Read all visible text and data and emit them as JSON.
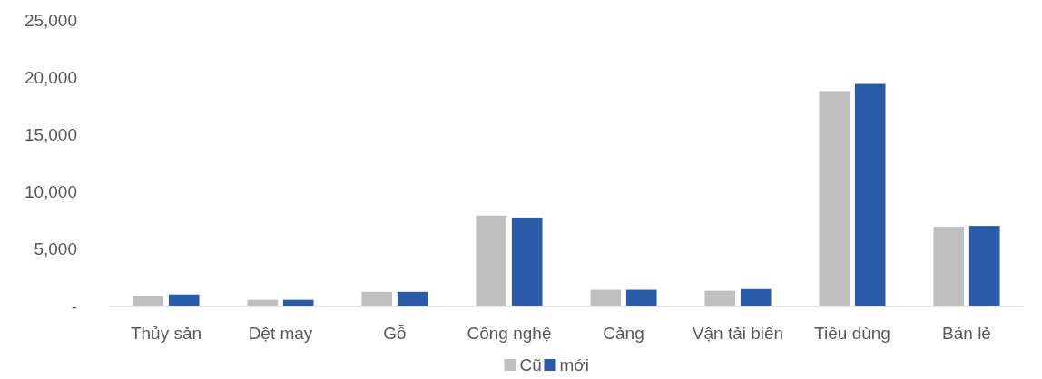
{
  "chart_data": {
    "type": "bar",
    "categories": [
      "Thủy sản",
      "Dệt may",
      "Gỗ",
      "Công nghệ",
      "Cảng",
      "Vận tải biển",
      "Tiêu dùng",
      "Bán lẻ"
    ],
    "series": [
      {
        "name": "Cũ",
        "color": "#bfbfbf",
        "values": [
          900,
          580,
          1280,
          7930,
          1460,
          1370,
          18800,
          6970
        ]
      },
      {
        "name": "mới",
        "color": "#2a5ba8",
        "values": [
          1050,
          580,
          1280,
          7760,
          1460,
          1520,
          19420,
          7030
        ]
      }
    ],
    "ylim": [
      0,
      25000
    ],
    "yticks": [
      {
        "value": 0,
        "label": "-"
      },
      {
        "value": 5000,
        "label": "5,000"
      },
      {
        "value": 10000,
        "label": "10,000"
      },
      {
        "value": 15000,
        "label": "15,000"
      },
      {
        "value": 20000,
        "label": "20,000"
      },
      {
        "value": 25000,
        "label": "25,000"
      }
    ],
    "grid": false,
    "legend": "bottom"
  }
}
